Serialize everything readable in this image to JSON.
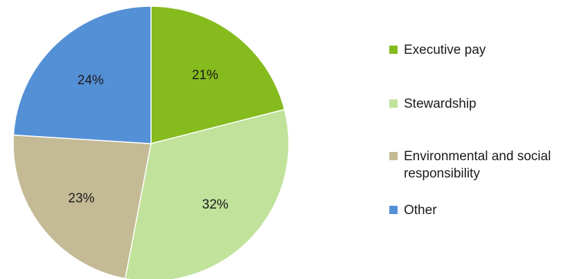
{
  "chart_data": {
    "type": "pie",
    "categories": [
      "Executive pay",
      "Stewardship",
      "Environmental and social responsibility",
      "Other"
    ],
    "values": [
      21,
      32,
      23,
      24
    ],
    "value_labels": [
      "21%",
      "32%",
      "23%",
      "24%"
    ],
    "colors": [
      "#86bb1e",
      "#c0e29a",
      "#c4bb96",
      "#5490d6"
    ],
    "start_angle_deg": 0,
    "direction": "clockwise",
    "legend": {
      "placement": "right",
      "lines": [
        [
          "Executive pay"
        ],
        [
          "Stewardship"
        ],
        [
          "Environmental and social",
          "responsibility"
        ],
        [
          "Other"
        ]
      ]
    }
  }
}
